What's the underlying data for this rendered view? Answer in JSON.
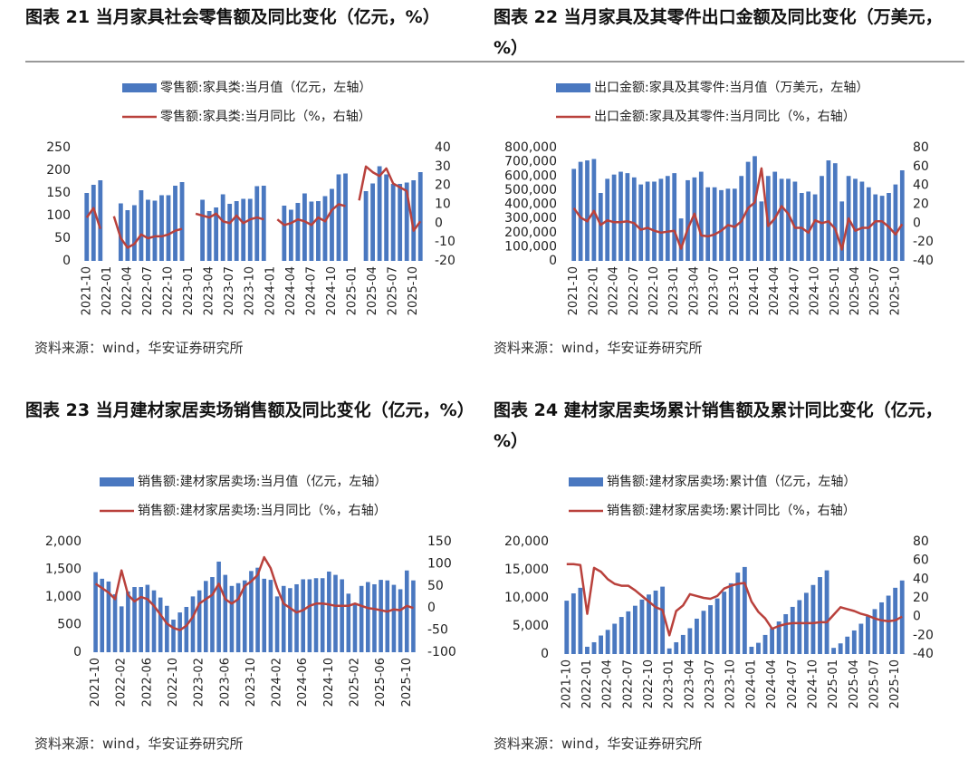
{
  "chart_data": [
    {
      "type": "combo",
      "title": "图表 21 当月家具社会零售额及同比变化（亿元，%）",
      "source": "资料来源：wind，华安证券研究所",
      "categories": [
        "2021-10",
        null,
        null,
        "2022-01",
        null,
        null,
        "2022-04",
        null,
        null,
        "2022-07",
        null,
        null,
        "2022-10",
        null,
        null,
        "2023-01",
        null,
        null,
        "2023-04",
        null,
        null,
        "2023-07",
        null,
        null,
        "2023-10",
        null,
        null,
        "2024-01",
        null,
        null,
        "2024-04",
        null,
        null,
        "2024-07",
        null,
        null,
        "2024-10",
        null,
        null,
        "2025-01",
        null,
        null,
        "2025-04",
        null,
        null,
        "2025-07",
        null,
        null,
        "2025-10",
        null
      ],
      "series": [
        {
          "name": "零售额:家具类:当月值（亿元，左轴）",
          "kind": "bar",
          "color": "#4a78c0",
          "values": [
            150,
            168,
            178,
            null,
            null,
            127,
            112,
            123,
            156,
            135,
            133,
            145,
            145,
            166,
            174,
            null,
            null,
            135,
            110,
            118,
            147,
            126,
            132,
            137,
            137,
            165,
            166,
            null,
            null,
            122,
            113,
            128,
            149,
            131,
            132,
            143,
            159,
            191,
            193,
            null,
            null,
            154,
            171,
            209,
            191,
            170,
            170,
            173,
            178,
            196
          ]
        },
        {
          "name": "零售额:家具类:当月同比（%，右轴）",
          "kind": "line",
          "axis": "y2",
          "color": "#b9413c",
          "values": [
            3,
            8,
            -3,
            null,
            3.6,
            -8,
            -13,
            -11,
            -6,
            -8,
            -7,
            -7,
            -6,
            -4,
            -3,
            null,
            5,
            4,
            3,
            5,
            1,
            0,
            4,
            0,
            2,
            3,
            2,
            null,
            2,
            -1,
            0,
            2,
            1,
            -1,
            3,
            1,
            7,
            10,
            9,
            null,
            12,
            30,
            27,
            25,
            29,
            21,
            19,
            17,
            -4,
            1
          ]
        }
      ],
      "ylim": [
        0,
        250
      ],
      "yticks": [
        0,
        50,
        100,
        150,
        200,
        250
      ],
      "y2lim": [
        -20,
        40
      ],
      "y2ticks": [
        -20,
        -10,
        0,
        10,
        20,
        30,
        40
      ]
    },
    {
      "type": "combo",
      "title": "图表 22 当月家具及其零件出口金额及同比变化（万美元，%）",
      "source": "资料来源：wind，华安证券研究所",
      "categories": [
        "2021-10",
        null,
        null,
        "2022-01",
        null,
        null,
        "2022-04",
        null,
        null,
        "2022-07",
        null,
        null,
        "2022-10",
        null,
        null,
        "2023-01",
        null,
        null,
        "2023-04",
        null,
        null,
        "2023-07",
        null,
        null,
        "2023-10",
        null,
        null,
        "2024-01",
        null,
        null,
        "2024-04",
        null,
        null,
        "2024-07",
        null,
        null,
        "2024-10",
        null,
        null,
        "2025-01",
        null,
        null,
        "2025-04",
        null,
        null,
        "2025-07",
        null,
        null,
        "2025-10",
        null
      ],
      "series": [
        {
          "name": "出口金额:家具及其零件:当月值（万美元，左轴）",
          "kind": "bar",
          "color": "#4a78c0",
          "values": [
            650000,
            700000,
            710000,
            720000,
            480000,
            580000,
            610000,
            630000,
            620000,
            590000,
            540000,
            560000,
            560000,
            580000,
            600000,
            620000,
            300000,
            570000,
            590000,
            630000,
            520000,
            520000,
            500000,
            510000,
            510000,
            600000,
            700000,
            740000,
            420000,
            600000,
            630000,
            580000,
            580000,
            560000,
            480000,
            490000,
            470000,
            600000,
            710000,
            690000,
            420000,
            600000,
            580000,
            560000,
            520000,
            470000,
            460000,
            480000,
            540000,
            640000
          ]
        },
        {
          "name": "出口金额:家具及其零件:当月同比（%，右轴）",
          "kind": "line",
          "axis": "y2",
          "color": "#b9413c",
          "values": [
            16,
            6,
            2,
            13,
            -2,
            3,
            1,
            1,
            2,
            0,
            -7,
            -5,
            -8,
            -10,
            -9,
            -8,
            -27,
            -6,
            10,
            -13,
            -14,
            -12,
            -8,
            -2,
            -4,
            2,
            16,
            22,
            58,
            -3,
            5,
            18,
            10,
            -5,
            -5,
            -10,
            3,
            0,
            2,
            -6,
            -28,
            5,
            -8,
            -5,
            -5,
            2,
            2,
            -4,
            -12,
            -1
          ]
        }
      ],
      "ylim": [
        0,
        800000
      ],
      "yticks": [
        0,
        {
          "value": 100000,
          "label": "100,000"
        },
        {
          "value": 200000,
          "label": "200,000"
        },
        {
          "value": 300000,
          "label": "300,000"
        },
        {
          "value": 400000,
          "label": "400,000"
        },
        {
          "value": 500000,
          "label": "500,000"
        },
        {
          "value": 600000,
          "label": "600,000"
        },
        {
          "value": 700000,
          "label": "700,000"
        },
        {
          "value": 800000,
          "label": "800,000"
        }
      ],
      "y2lim": [
        -40,
        80
      ],
      "y2ticks": [
        -40,
        -20,
        0,
        20,
        40,
        60,
        80
      ]
    },
    {
      "type": "combo",
      "title": "图表 23 当月建材家居卖场销售额及同比变化（亿元，%）",
      "source": "资料来源：wind，华安证券研究所",
      "categories": [
        "2021-10",
        null,
        null,
        null,
        "2022-02",
        null,
        null,
        null,
        "2022-06",
        null,
        null,
        null,
        "2022-10",
        null,
        null,
        null,
        "2023-02",
        null,
        null,
        null,
        "2023-06",
        null,
        null,
        null,
        "2023-10",
        null,
        null,
        null,
        "2024-02",
        null,
        null,
        null,
        "2024-06",
        null,
        null,
        null,
        "2024-10",
        null,
        null,
        null,
        "2025-02",
        null,
        null,
        null,
        "2025-06",
        null,
        null,
        null,
        "2025-10",
        null
      ],
      "series": [
        {
          "name": "销售额:建材家居卖场:当月值（亿元，左轴）",
          "kind": "bar",
          "color": "#4a78c0",
          "values": [
            1450,
            1330,
            1280,
            1050,
            830,
            1100,
            1180,
            1180,
            1220,
            1120,
            990,
            840,
            590,
            720,
            820,
            1010,
            1120,
            1290,
            1360,
            1640,
            1400,
            1200,
            1250,
            1300,
            1470,
            1530,
            1330,
            1310,
            1010,
            1200,
            1160,
            1230,
            1320,
            1320,
            1340,
            1340,
            1460,
            1400,
            1320,
            1060,
            890,
            1200,
            1270,
            1230,
            1310,
            1300,
            1220,
            1140,
            1480,
            1300
          ]
        },
        {
          "name": "销售额:建材家居卖场:当月同比（%，右轴）",
          "kind": "line",
          "axis": "y2",
          "color": "#b9413c",
          "values": [
            55,
            45,
            35,
            20,
            85,
            30,
            15,
            25,
            20,
            5,
            -15,
            -35,
            -45,
            -50,
            -40,
            -20,
            10,
            20,
            30,
            55,
            20,
            10,
            20,
            50,
            60,
            75,
            115,
            90,
            45,
            10,
            0,
            -10,
            -5,
            5,
            10,
            10,
            8,
            5,
            5,
            5,
            10,
            5,
            0,
            -2,
            -5,
            -8,
            -3,
            -5,
            5,
            0
          ]
        }
      ],
      "ylim": [
        0,
        2000
      ],
      "yticks": [
        0,
        500,
        {
          "value": 1000,
          "label": "1,000"
        },
        {
          "value": 1500,
          "label": "1,500"
        },
        {
          "value": 2000,
          "label": "2,000"
        }
      ],
      "y2lim": [
        -100,
        150
      ],
      "y2ticks": [
        -100,
        -50,
        0,
        50,
        100,
        150
      ]
    },
    {
      "type": "combo",
      "title": "图表 24 建材家居卖场累计销售额及累计同比变化（亿元，%）",
      "source": "资料来源：wind，华安证券研究所",
      "categories": [
        "2021-10",
        null,
        null,
        "2022-01",
        null,
        null,
        "2022-04",
        null,
        null,
        "2022-07",
        null,
        null,
        "2022-10",
        null,
        null,
        "2023-01",
        null,
        null,
        "2023-04",
        null,
        null,
        "2023-07",
        null,
        null,
        "2023-10",
        null,
        null,
        "2024-01",
        null,
        null,
        "2024-04",
        null,
        null,
        "2024-07",
        null,
        null,
        "2024-10",
        null,
        null,
        "2025-01",
        null,
        null,
        "2025-04",
        null,
        null,
        "2025-07",
        null,
        null,
        "2025-10",
        null
      ],
      "series": [
        {
          "name": "销售额:建材家居卖场:累计值（亿元，左轴）",
          "kind": "bar",
          "color": "#4a78c0",
          "values": [
            9500,
            10800,
            11800,
            1300,
            2100,
            3300,
            4300,
            5400,
            6600,
            7600,
            8600,
            9700,
            10600,
            11300,
            12000,
            1000,
            2100,
            3400,
            4600,
            6300,
            7700,
            8700,
            9900,
            11100,
            12600,
            14500,
            15500,
            1300,
            2000,
            3400,
            4600,
            5800,
            7100,
            8400,
            9600,
            10900,
            12300,
            13700,
            14900,
            1100,
            1900,
            3100,
            4200,
            5400,
            6700,
            8000,
            9200,
            10400,
            11800,
            13100
          ]
        },
        {
          "name": "销售额:建材家居卖场:累计同比（%，右轴）",
          "kind": "line",
          "axis": "y2",
          "color": "#b9413c",
          "values": [
            56,
            56,
            55,
            3,
            52,
            48,
            40,
            35,
            33,
            33,
            28,
            22,
            16,
            10,
            7,
            -20,
            6,
            12,
            24,
            22,
            20,
            19,
            22,
            30,
            33,
            35,
            36,
            16,
            5,
            -2,
            -13,
            -10,
            -8,
            -7,
            -7,
            -7,
            -7,
            -6,
            -6,
            2,
            10,
            8,
            6,
            3,
            1,
            -2,
            -4,
            -5,
            -4,
            0
          ]
        }
      ],
      "ylim": [
        0,
        20000
      ],
      "yticks": [
        0,
        {
          "value": 5000,
          "label": "5,000"
        },
        {
          "value": 10000,
          "label": "10,000"
        },
        {
          "value": 15000,
          "label": "15,000"
        },
        {
          "value": 20000,
          "label": "20,000"
        }
      ],
      "y2lim": [
        -40,
        80
      ],
      "y2ticks": [
        -40,
        -20,
        0,
        20,
        40,
        60,
        80
      ]
    }
  ]
}
